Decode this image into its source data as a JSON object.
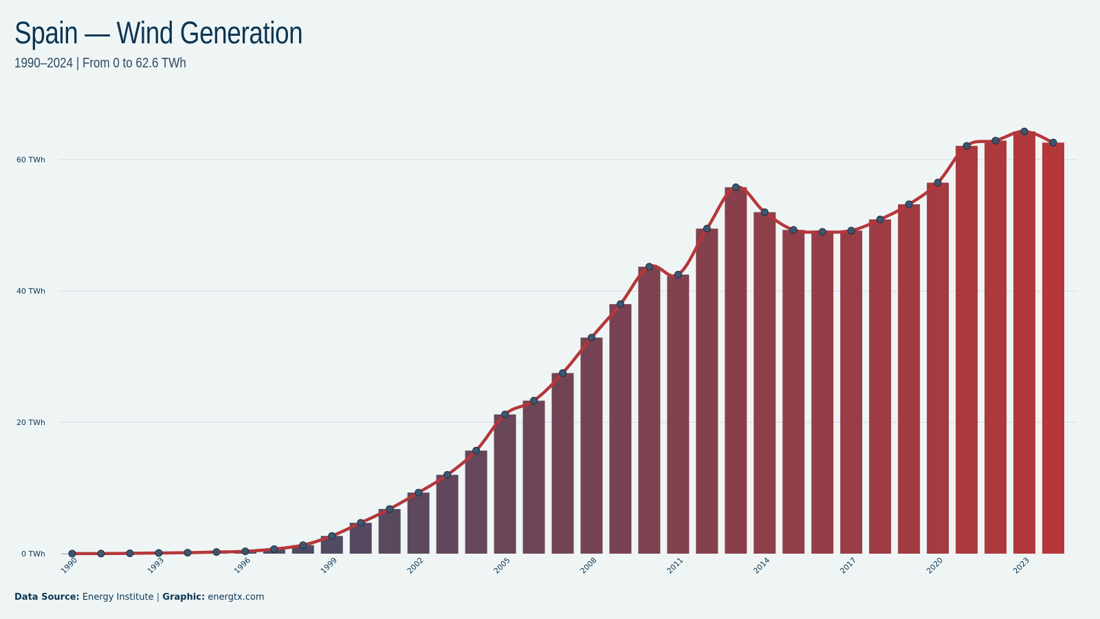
{
  "title": "Spain — Wind Generation",
  "subtitle": "1990–2024 | From 0 to 62.6 TWh",
  "footer": {
    "source_label": "Data Source:",
    "source_value": "Energy Institute",
    "separator": "|",
    "graphic_label": "Graphic:",
    "graphic_value": "energtx.com"
  },
  "colors": {
    "background": "#eff5f5",
    "text": "#0c3553",
    "bar_start": "#2d5170",
    "bar_end": "#b5373a",
    "line": "#b5373a",
    "marker_fill": "#3d5770",
    "grid": "#d3dcdf"
  },
  "chart_data": {
    "type": "bar",
    "overlay": "line",
    "title": "Spain — Wind Generation",
    "subtitle": "1990–2024 | From 0 to 62.6 TWh",
    "xlabel": "",
    "ylabel": "",
    "unit": "TWh",
    "ylim": [
      0,
      69
    ],
    "yticks": [
      0,
      20,
      40,
      60
    ],
    "ytick_labels": [
      "0 TWh",
      "20 TWh",
      "40 TWh",
      "60 TWh"
    ],
    "xtick_labels": [
      "1990",
      "1993",
      "1996",
      "1999",
      "2002",
      "2005",
      "2008",
      "2011",
      "2014",
      "2017",
      "2020",
      "2023"
    ],
    "grid": true,
    "legend": "none",
    "categories": [
      "1990",
      "1991",
      "1992",
      "1993",
      "1994",
      "1995",
      "1996",
      "1997",
      "1998",
      "1999",
      "2000",
      "2001",
      "2002",
      "2003",
      "2004",
      "2005",
      "2006",
      "2007",
      "2008",
      "2009",
      "2010",
      "2011",
      "2012",
      "2013",
      "2014",
      "2015",
      "2016",
      "2017",
      "2018",
      "2019",
      "2020",
      "2021",
      "2022",
      "2023",
      "2024"
    ],
    "values": [
      0.01,
      0.01,
      0.05,
      0.1,
      0.15,
      0.25,
      0.35,
      0.7,
      1.3,
      2.7,
      4.7,
      6.8,
      9.3,
      12.0,
      15.7,
      21.2,
      23.3,
      27.5,
      32.9,
      38.0,
      43.7,
      42.5,
      49.5,
      55.8,
      52.0,
      49.3,
      49.0,
      49.2,
      50.9,
      53.2,
      56.5,
      62.1,
      62.9,
      64.3,
      62.6
    ]
  }
}
